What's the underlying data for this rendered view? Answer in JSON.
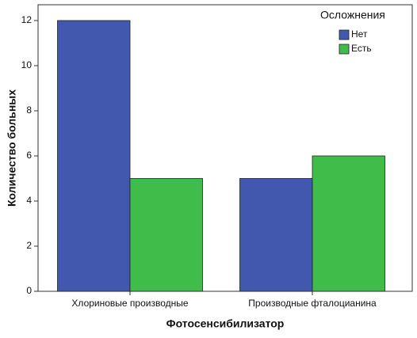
{
  "chart_data": {
    "type": "bar",
    "categories": [
      "Хлориновые производные",
      "Производные фталоцианина"
    ],
    "series": [
      {
        "name": "Нет",
        "color": "#4257ae",
        "values": [
          12,
          5
        ]
      },
      {
        "name": "Есть",
        "color": "#3fbc4a",
        "values": [
          5,
          6
        ]
      }
    ],
    "legend_title": "Осложнения",
    "legend": "upper right",
    "x_label": "Фотосенсибилизатор",
    "y_label": "Количество больных",
    "ylim": [
      0,
      12.7
    ],
    "yticks": [
      0,
      2,
      4,
      6,
      8,
      10,
      12
    ],
    "grid": false
  }
}
